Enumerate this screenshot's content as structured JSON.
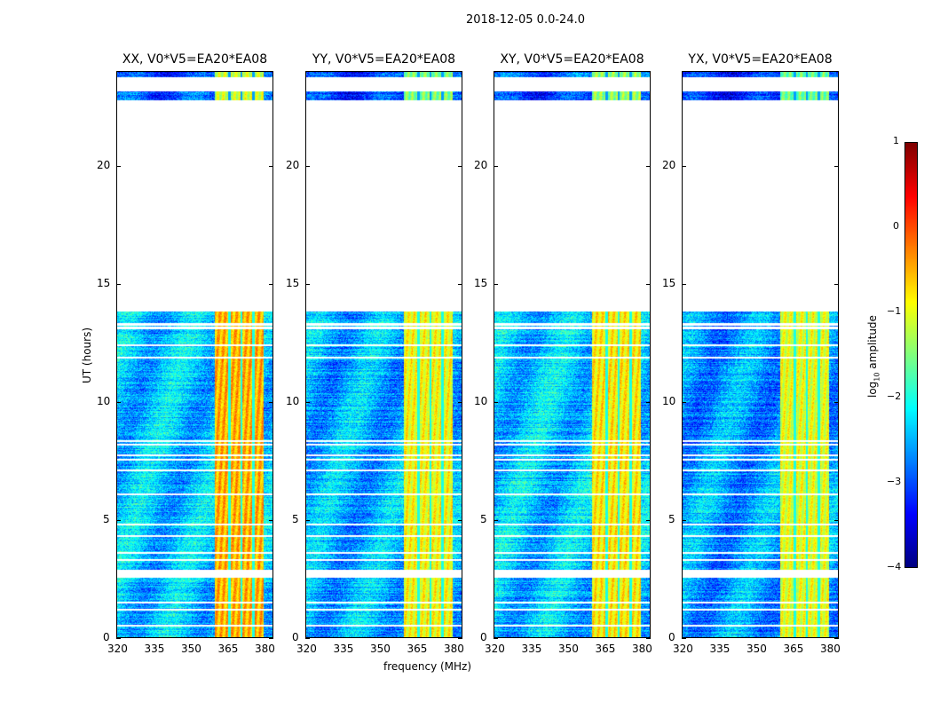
{
  "chart_data": {
    "type": "heatmap",
    "suptitle": "2018-12-05 0.0-24.0",
    "xlabel": "frequency (MHz)",
    "ylabel": "UT (hours)",
    "xlim": [
      320,
      384
    ],
    "ylim": [
      0,
      24
    ],
    "xticks": [
      "320",
      "335",
      "350",
      "365",
      "380"
    ],
    "yticks": [
      "0",
      "5",
      "10",
      "15",
      "20"
    ],
    "panels": [
      {
        "title": "XX, V0*V5=EA20*EA08",
        "background_level": -2.4,
        "rfi_level": -0.5
      },
      {
        "title": "YY, V0*V5=EA20*EA08",
        "background_level": -2.5,
        "rfi_level": -0.9
      },
      {
        "title": "XY, V0*V5=EA20*EA08",
        "background_level": -2.4,
        "rfi_level": -0.8
      },
      {
        "title": "YX, V0*V5=EA20*EA08",
        "background_level": -2.6,
        "rfi_level": -1.0
      }
    ],
    "data_time_ranges_hours": [
      [
        0,
        2.55
      ],
      [
        2.9,
        13.85
      ],
      [
        22.8,
        23.2
      ],
      [
        23.8,
        24
      ]
    ],
    "flagged_time_lines_hours": [
      0.5,
      1.2,
      1.5,
      3.3,
      3.6,
      4.3,
      4.8,
      6.1,
      7.1,
      7.55,
      7.75,
      8.2,
      8.35,
      11.9,
      12.4,
      13.15,
      13.3
    ],
    "rfi_band_mhz": [
      360,
      380
    ],
    "rfi_gaps_mhz": [
      366,
      371,
      376
    ],
    "colorbar": {
      "label": "log10 amplitude",
      "label_main": "log",
      "label_sub": "10",
      "label_rest": " amplitude",
      "range": [
        -4,
        1
      ],
      "ticks": [
        "−4",
        "−3",
        "−2",
        "−1",
        "0",
        "1"
      ],
      "colormap": "jet"
    }
  }
}
